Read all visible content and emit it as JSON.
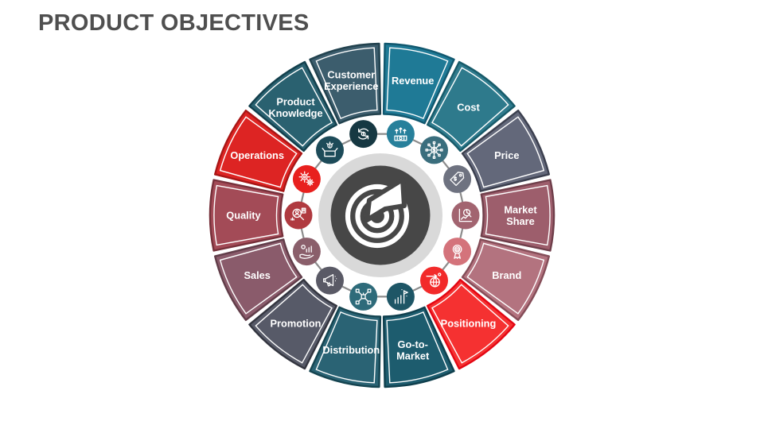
{
  "slide": {
    "title": "PRODUCT OBJECTIVES",
    "title_color": "#4f4f4f",
    "background": "#ffffff"
  },
  "diagram": {
    "type": "circular-objectives-wheel",
    "connector_color": "#8c8c8c",
    "center": {
      "icon": "target-dart-icon",
      "ring_color": "#d9d9d9",
      "circle_color": "#474747",
      "glyph_color": "#ffffff"
    },
    "segments": [
      {
        "label": "Revenue",
        "lines": [
          "Revenue"
        ],
        "fill": "#1F7A96",
        "border": "#11586F",
        "icon_fill": "#27809B",
        "icon": "money-growth-icon"
      },
      {
        "label": "Cost",
        "lines": [
          "Cost"
        ],
        "fill": "#2E7A8C",
        "border": "#175A69",
        "icon_fill": "#3A6E7D",
        "icon": "dollar-network-icon"
      },
      {
        "label": "Price",
        "lines": [
          "Price"
        ],
        "fill": "#63687A",
        "border": "#3B3F4E",
        "icon_fill": "#6E7280",
        "icon": "price-tag-icon"
      },
      {
        "label": "Market Share",
        "lines": [
          "Market",
          "Share"
        ],
        "fill": "#9D5E6C",
        "border": "#6F3E4A",
        "icon_fill": "#A26470",
        "icon": "chart-pie-magnifier-icon"
      },
      {
        "label": "Brand",
        "lines": [
          "Brand"
        ],
        "fill": "#B3737F",
        "border": "#854D58",
        "icon_fill": "#D4737B",
        "icon": "award-ribbon-icon"
      },
      {
        "label": "Positioning",
        "lines": [
          "Positioning"
        ],
        "fill": "#F53131",
        "border": "#E30613",
        "icon_fill": "#F22A2A",
        "icon": "globe-arrow-icon"
      },
      {
        "label": "Go-to-Market",
        "lines": [
          "Go-to-",
          "Market"
        ],
        "fill": "#1D5C6E",
        "border": "#0F3F4D",
        "icon_fill": "#1E5666",
        "icon": "launch-chart-icon"
      },
      {
        "label": "Distribution",
        "lines": [
          "Distribution"
        ],
        "fill": "#2A6374",
        "border": "#154450",
        "icon_fill": "#2E6B7A",
        "icon": "box-network-icon"
      },
      {
        "label": "Promotion",
        "lines": [
          "Promotion"
        ],
        "fill": "#575A68",
        "border": "#33353F",
        "icon_fill": "#5A5A66",
        "icon": "megaphone-icon"
      },
      {
        "label": "Sales",
        "lines": [
          "Sales"
        ],
        "fill": "#8A5B6B",
        "border": "#613D49",
        "icon_fill": "#8A5F6B",
        "icon": "hand-chart-icon"
      },
      {
        "label": "Quality",
        "lines": [
          "Quality"
        ],
        "fill": "#A34B57",
        "border": "#76303A",
        "icon_fill": "#B03A40",
        "icon": "person-magnifier-icon"
      },
      {
        "label": "Operations",
        "lines": [
          "Operations"
        ],
        "fill": "#DD2423",
        "border": "#A81616",
        "icon_fill": "#E8201E",
        "icon": "gears-icon"
      },
      {
        "label": "Product Knowledge",
        "lines": [
          "Product",
          "Knowledge"
        ],
        "fill": "#2A6170",
        "border": "#123F4C",
        "icon_fill": "#1D4B59",
        "icon": "open-box-idea-icon"
      },
      {
        "label": "Customer Experience",
        "lines": [
          "Customer",
          "Experience"
        ],
        "fill": "#3C5D6D",
        "border": "#22424E",
        "icon_fill": "#163842",
        "icon": "circular-arrows-icon"
      }
    ]
  }
}
